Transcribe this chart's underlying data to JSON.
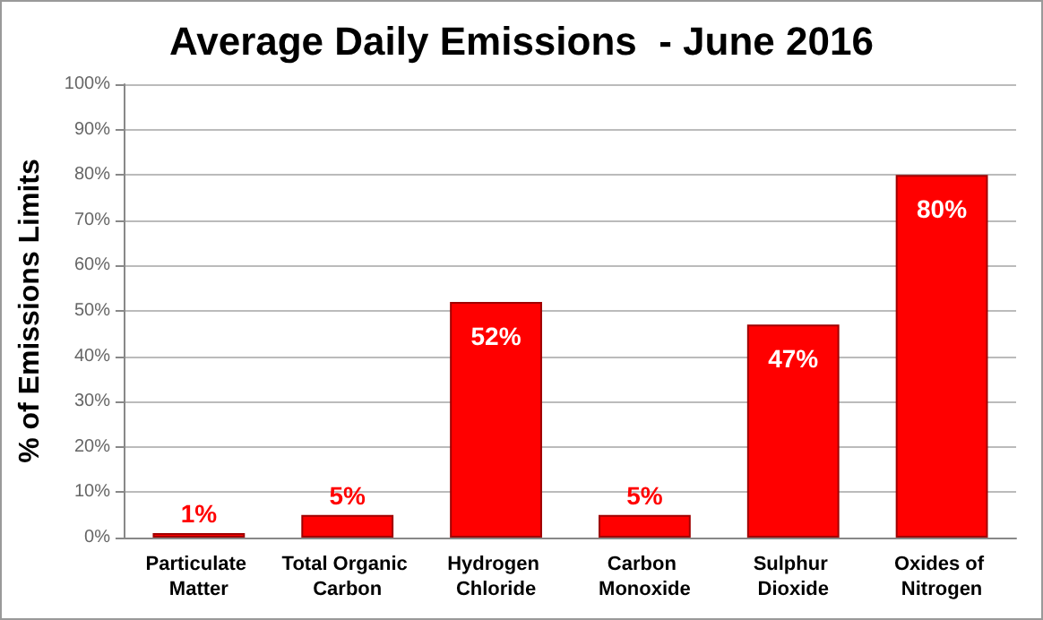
{
  "chart_data": {
    "type": "bar",
    "title": "Average Daily Emissions  - June 2016",
    "ylabel": "% of Emissions Limits",
    "categories": [
      "Particulate Matter",
      "Total Organic Carbon",
      "Hydrogen Chloride",
      "Carbon Monoxide",
      "Sulphur Dioxide",
      "Oxides of Nitrogen"
    ],
    "values": [
      1,
      5,
      52,
      5,
      47,
      80
    ],
    "color": "#ff0000",
    "value_labels": [
      "1%",
      "5%",
      "52%",
      "5%",
      "47%",
      "80%"
    ],
    "ylim": [
      0,
      100
    ],
    "yticks": [
      {
        "value": 0,
        "label": "0%"
      },
      {
        "value": 10,
        "label": "10%"
      },
      {
        "value": 20,
        "label": "20%"
      },
      {
        "value": 30,
        "label": "30%"
      },
      {
        "value": 40,
        "label": "40%"
      },
      {
        "value": 50,
        "label": "50%"
      },
      {
        "value": 60,
        "label": "60%"
      },
      {
        "value": 70,
        "label": "70%"
      },
      {
        "value": 80,
        "label": "80%"
      },
      {
        "value": 90,
        "label": "90%"
      },
      {
        "value": 100,
        "label": "100%"
      }
    ],
    "grid": "y"
  }
}
